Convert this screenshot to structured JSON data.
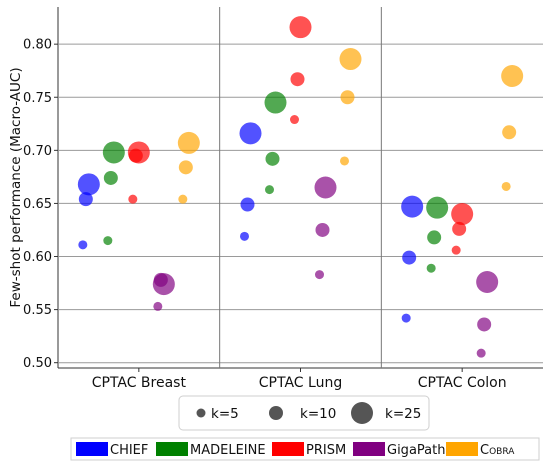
{
  "chart_data": {
    "type": "scatter",
    "ylabel": "Few-shot performance (Macro-AUC)",
    "xlabel": "",
    "ylim": [
      0.495,
      0.835
    ],
    "yticks": [
      0.5,
      0.55,
      0.6,
      0.65,
      0.7,
      0.75,
      0.8
    ],
    "ytick_labels": [
      "0.50",
      "0.55",
      "0.60",
      "0.65",
      "0.70",
      "0.75",
      "0.80"
    ],
    "grid": true,
    "categories": [
      "CPTAC Breast",
      "CPTAC Lung",
      "CPTAC Colon"
    ],
    "k_values": [
      5,
      10,
      25
    ],
    "size_legend": {
      "entries": [
        {
          "k": 5,
          "label": "k=5"
        },
        {
          "k": 10,
          "label": "k=10"
        },
        {
          "k": 25,
          "label": "k=25"
        }
      ]
    },
    "series": [
      {
        "name": "CHIEF",
        "color": "#0000ff",
        "values": {
          "CPTAC Breast": {
            "5": 0.611,
            "10": 0.654,
            "25": 0.668
          },
          "CPTAC Lung": {
            "5": 0.619,
            "10": 0.649,
            "25": 0.716
          },
          "CPTAC Colon": {
            "5": 0.542,
            "10": 0.599,
            "25": 0.647
          }
        }
      },
      {
        "name": "MADELEINE",
        "color": "#008000",
        "values": {
          "CPTAC Breast": {
            "5": 0.615,
            "10": 0.674,
            "25": 0.698
          },
          "CPTAC Lung": {
            "5": 0.663,
            "10": 0.692,
            "25": 0.745
          },
          "CPTAC Colon": {
            "5": 0.589,
            "10": 0.618,
            "25": 0.646
          }
        }
      },
      {
        "name": "PRISM",
        "color": "#ff0000",
        "values": {
          "CPTAC Breast": {
            "5": 0.654,
            "10": 0.695,
            "25": 0.698
          },
          "CPTAC Lung": {
            "5": 0.729,
            "10": 0.767,
            "25": 0.816
          },
          "CPTAC Colon": {
            "5": 0.606,
            "10": 0.626,
            "25": 0.64
          }
        }
      },
      {
        "name": "GigaPath",
        "color": "#800080",
        "values": {
          "CPTAC Breast": {
            "5": 0.553,
            "10": 0.578,
            "25": 0.574
          },
          "CPTAC Lung": {
            "5": 0.583,
            "10": 0.625,
            "25": 0.665
          },
          "CPTAC Colon": {
            "5": 0.509,
            "10": 0.536,
            "25": 0.576
          }
        }
      },
      {
        "name": "COBRA",
        "color": "#ffa500",
        "values": {
          "CPTAC Breast": {
            "5": 0.654,
            "10": 0.684,
            "25": 0.707
          },
          "CPTAC Lung": {
            "5": 0.69,
            "10": 0.75,
            "25": 0.786
          },
          "CPTAC Colon": {
            "5": 0.666,
            "10": 0.717,
            "25": 0.77
          }
        }
      }
    ],
    "series_legend_labels": [
      "CHIEF",
      "MADELEINE",
      "PRISM",
      "GigaPath",
      "Cobra"
    ],
    "legend_placement": "bottom"
  }
}
